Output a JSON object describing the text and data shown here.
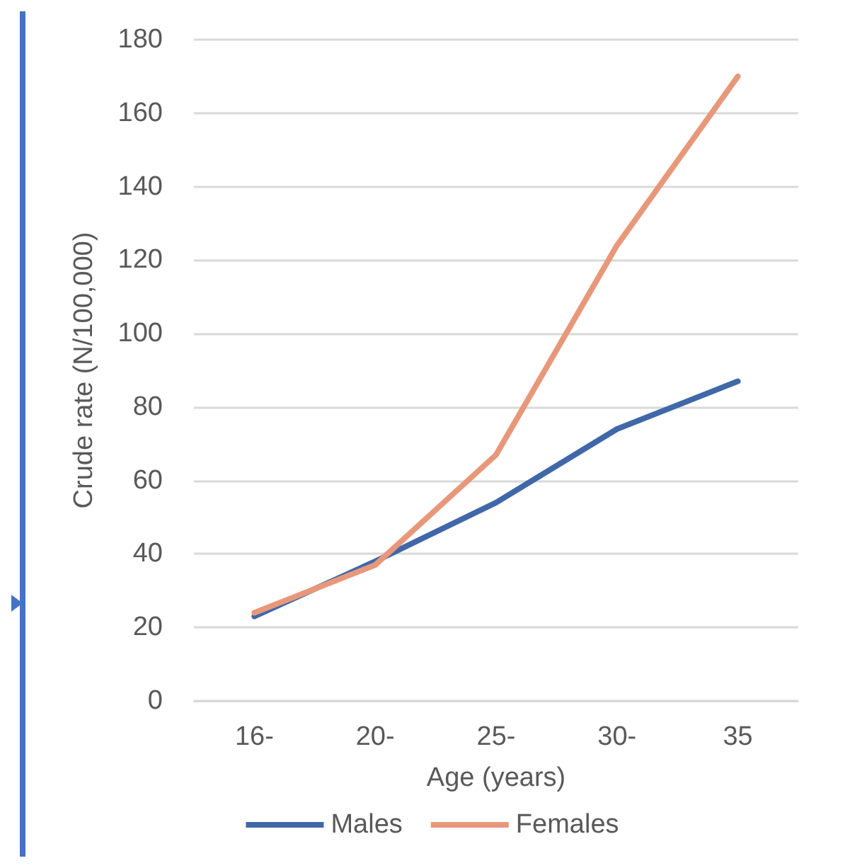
{
  "chart_data": {
    "type": "line",
    "xlabel": "Age (years)",
    "ylabel": "Crude rate (N/100,000)",
    "categories": [
      "16-",
      "20-",
      "25-",
      "30-",
      "35"
    ],
    "series": [
      {
        "name": "Males",
        "color": "#4068a8",
        "values": [
          23,
          38,
          54,
          74,
          87
        ]
      },
      {
        "name": "Females",
        "color": "#e8987a",
        "values": [
          24,
          37,
          67,
          124,
          170
        ]
      }
    ],
    "ylim": [
      0,
      180
    ],
    "yticks": [
      0,
      20,
      40,
      60,
      80,
      100,
      120,
      140,
      160,
      180
    ],
    "grid": "y",
    "legend": "bottom",
    "marker": "none",
    "line_style": "solid"
  }
}
